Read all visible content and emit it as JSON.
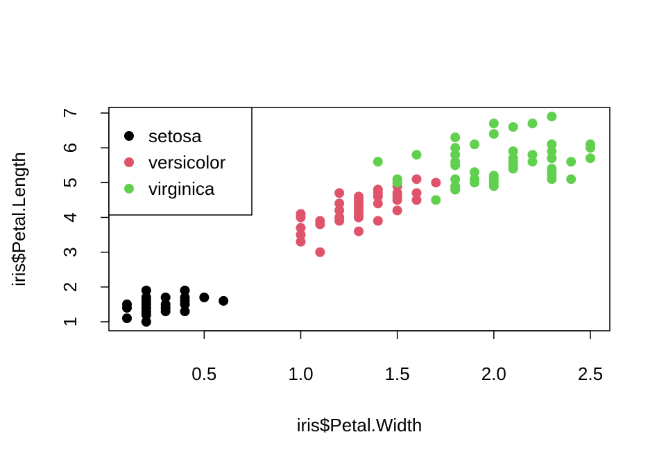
{
  "chart_data": {
    "type": "scatter",
    "title": "",
    "xlabel": "iris$Petal.Width",
    "ylabel": "iris$Petal.Length",
    "xlim": [
      0.1,
      2.5
    ],
    "ylim": [
      1,
      7
    ],
    "x_ticks": [
      "0.5",
      "1.0",
      "1.5",
      "2.0",
      "2.5"
    ],
    "y_ticks": [
      "1",
      "2",
      "3",
      "4",
      "5",
      "6",
      "7"
    ],
    "grid": false,
    "legend_position": "top-left",
    "series": [
      {
        "name": "setosa",
        "color": "#000000",
        "points": [
          [
            0.1,
            1.1
          ],
          [
            0.1,
            1.4
          ],
          [
            0.1,
            1.5
          ],
          [
            0.2,
            1.0
          ],
          [
            0.2,
            1.2
          ],
          [
            0.2,
            1.3
          ],
          [
            0.2,
            1.4
          ],
          [
            0.2,
            1.5
          ],
          [
            0.2,
            1.6
          ],
          [
            0.2,
            1.7
          ],
          [
            0.2,
            1.9
          ],
          [
            0.3,
            1.3
          ],
          [
            0.3,
            1.4
          ],
          [
            0.3,
            1.5
          ],
          [
            0.3,
            1.7
          ],
          [
            0.4,
            1.3
          ],
          [
            0.4,
            1.5
          ],
          [
            0.4,
            1.6
          ],
          [
            0.4,
            1.7
          ],
          [
            0.4,
            1.9
          ],
          [
            0.5,
            1.7
          ],
          [
            0.6,
            1.6
          ]
        ]
      },
      {
        "name": "versicolor",
        "color": "#DF536B",
        "points": [
          [
            1.0,
            3.3
          ],
          [
            1.0,
            3.5
          ],
          [
            1.0,
            3.7
          ],
          [
            1.0,
            4.0
          ],
          [
            1.0,
            4.1
          ],
          [
            1.1,
            3.0
          ],
          [
            1.1,
            3.8
          ],
          [
            1.1,
            3.9
          ],
          [
            1.2,
            3.9
          ],
          [
            1.2,
            4.0
          ],
          [
            1.2,
            4.2
          ],
          [
            1.2,
            4.4
          ],
          [
            1.2,
            4.7
          ],
          [
            1.3,
            3.6
          ],
          [
            1.3,
            4.0
          ],
          [
            1.3,
            4.1
          ],
          [
            1.3,
            4.2
          ],
          [
            1.3,
            4.3
          ],
          [
            1.3,
            4.4
          ],
          [
            1.3,
            4.5
          ],
          [
            1.3,
            4.6
          ],
          [
            1.4,
            3.9
          ],
          [
            1.4,
            4.4
          ],
          [
            1.4,
            4.6
          ],
          [
            1.4,
            4.7
          ],
          [
            1.4,
            4.8
          ],
          [
            1.5,
            4.2
          ],
          [
            1.5,
            4.5
          ],
          [
            1.5,
            4.6
          ],
          [
            1.5,
            4.7
          ],
          [
            1.5,
            4.9
          ],
          [
            1.6,
            4.5
          ],
          [
            1.6,
            4.7
          ],
          [
            1.6,
            5.1
          ],
          [
            1.7,
            5.0
          ],
          [
            1.8,
            4.8
          ]
        ]
      },
      {
        "name": "virginica",
        "color": "#61D04F",
        "points": [
          [
            1.4,
            5.6
          ],
          [
            1.5,
            5.0
          ],
          [
            1.5,
            5.1
          ],
          [
            1.6,
            5.8
          ],
          [
            1.7,
            4.5
          ],
          [
            1.8,
            4.8
          ],
          [
            1.8,
            4.9
          ],
          [
            1.8,
            5.1
          ],
          [
            1.8,
            5.5
          ],
          [
            1.8,
            5.6
          ],
          [
            1.8,
            5.8
          ],
          [
            1.8,
            6.0
          ],
          [
            1.8,
            6.3
          ],
          [
            1.9,
            5.0
          ],
          [
            1.9,
            5.1
          ],
          [
            1.9,
            5.3
          ],
          [
            1.9,
            6.1
          ],
          [
            2.0,
            4.9
          ],
          [
            2.0,
            5.0
          ],
          [
            2.0,
            5.1
          ],
          [
            2.0,
            5.2
          ],
          [
            2.0,
            6.4
          ],
          [
            2.0,
            6.7
          ],
          [
            2.1,
            5.4
          ],
          [
            2.1,
            5.5
          ],
          [
            2.1,
            5.6
          ],
          [
            2.1,
            5.7
          ],
          [
            2.1,
            5.9
          ],
          [
            2.1,
            6.6
          ],
          [
            2.2,
            5.6
          ],
          [
            2.2,
            5.8
          ],
          [
            2.2,
            6.7
          ],
          [
            2.3,
            5.1
          ],
          [
            2.3,
            5.2
          ],
          [
            2.3,
            5.3
          ],
          [
            2.3,
            5.4
          ],
          [
            2.3,
            5.7
          ],
          [
            2.3,
            5.9
          ],
          [
            2.3,
            6.1
          ],
          [
            2.3,
            6.9
          ],
          [
            2.4,
            5.1
          ],
          [
            2.4,
            5.6
          ],
          [
            2.5,
            5.7
          ],
          [
            2.5,
            6.0
          ],
          [
            2.5,
            6.1
          ]
        ]
      }
    ]
  }
}
